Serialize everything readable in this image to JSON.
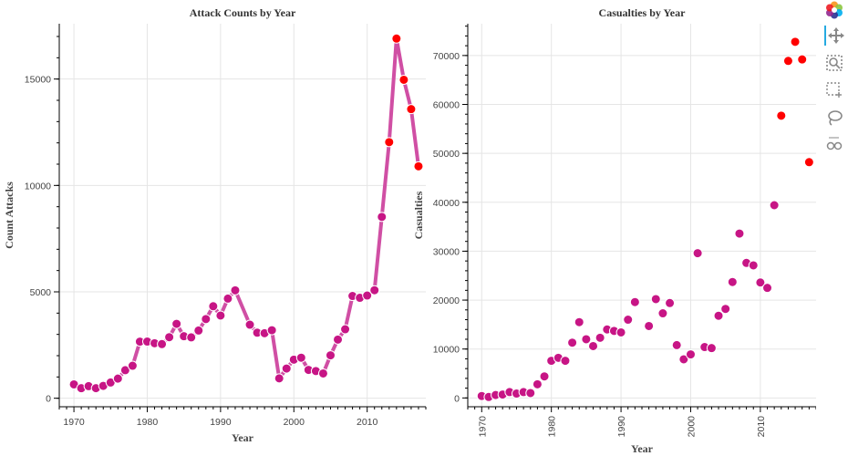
{
  "chart_data": [
    {
      "type": "line",
      "title": "Attack Counts by Year",
      "xlabel": "Year",
      "ylabel": "Count Attacks",
      "xlim": [
        1968,
        2018
      ],
      "ylim": [
        -400,
        17600
      ],
      "xticks": [
        1970,
        1980,
        1990,
        2000,
        2010
      ],
      "yticks": [
        0,
        5000,
        10000,
        15000
      ],
      "grid": true,
      "series": [
        {
          "color": "#d04fa4",
          "marker_color": "#c71585",
          "x": [
            1970,
            1971,
            1972,
            1973,
            1974,
            1975,
            1976,
            1977,
            1978,
            1979,
            1980,
            1981,
            1982,
            1983,
            1984,
            1985,
            1986,
            1987,
            1988,
            1989,
            1990,
            1991,
            1992,
            1994,
            1995,
            1996,
            1997,
            1998,
            1999,
            2000,
            2001,
            2002,
            2003,
            2004,
            2005,
            2006,
            2007,
            2008,
            2009,
            2010,
            2011,
            2012
          ],
          "values": [
            651,
            471,
            568,
            473,
            581,
            740,
            923,
            1319,
            1526,
            2661,
            2662,
            2586,
            2545,
            2870,
            3495,
            2915,
            2860,
            3183,
            3721,
            4324,
            3887,
            4683,
            5071,
            3456,
            3081,
            3058,
            3197,
            934,
            1395,
            1814,
            1906,
            1333,
            1278,
            1166,
            2017,
            2758,
            3242,
            4805,
            4721,
            4826,
            5076,
            8522
          ]
        },
        {
          "color": "#d04fa4",
          "marker_color": "#ff0000",
          "x": [
            2013,
            2014,
            2015,
            2016,
            2017
          ],
          "values": [
            12036,
            16903,
            14965,
            13587,
            10900
          ]
        }
      ]
    },
    {
      "type": "scatter",
      "title": "Casualties by Year",
      "xlabel": "Year",
      "ylabel": "Casualties",
      "xlim": [
        1968,
        2018
      ],
      "ylim": [
        -1800,
        76500
      ],
      "xticks": [
        1970,
        1980,
        1990,
        2000,
        2010
      ],
      "yticks": [
        0,
        10000,
        20000,
        30000,
        40000,
        50000,
        60000,
        70000
      ],
      "grid": true,
      "series": [
        {
          "color": "#c71585",
          "x": [
            1970,
            1971,
            1972,
            1973,
            1974,
            1975,
            1976,
            1977,
            1978,
            1979,
            1980,
            1981,
            1982,
            1983,
            1984,
            1985,
            1986,
            1987,
            1988,
            1989,
            1990,
            1991,
            1992,
            1994,
            1995,
            1996,
            1997,
            1998,
            1999,
            2000,
            2001,
            2002,
            2003,
            2004,
            2005,
            2006,
            2007,
            2008,
            2009,
            2010,
            2011,
            2012
          ],
          "values": [
            400,
            200,
            600,
            700,
            1200,
            900,
            1200,
            1000,
            2800,
            4400,
            7600,
            8200,
            7600,
            11300,
            15500,
            12000,
            10600,
            12300,
            14000,
            13700,
            13400,
            16000,
            19600,
            14700,
            20200,
            17300,
            19400,
            10800,
            7900,
            8900,
            29600,
            10400,
            10200,
            16800,
            18200,
            23700,
            33600,
            27600,
            27100,
            23600,
            22500,
            39400
          ]
        },
        {
          "color": "#ff0000",
          "x": [
            2013,
            2014,
            2015,
            2016,
            2017
          ],
          "values": [
            57700,
            68900,
            72800,
            69200,
            48200
          ]
        }
      ]
    }
  ],
  "toolbar": {
    "items": [
      "bokeh-logo",
      "pan",
      "wheel-zoom",
      "box-zoom",
      "lasso-select",
      "hover"
    ]
  }
}
